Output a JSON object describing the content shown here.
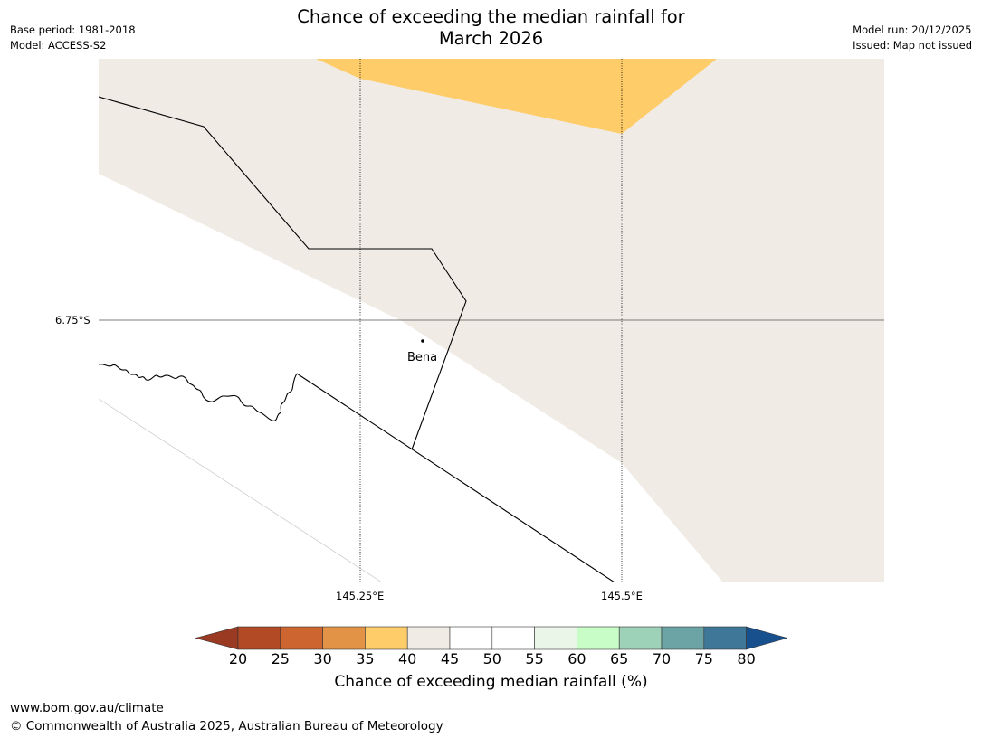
{
  "title": {
    "line1": "Chance of exceeding the median rainfall for",
    "line2": "March 2026"
  },
  "meta": {
    "base_period": "Base period: 1981-2018",
    "model": "Model: ACCESS-S2",
    "model_run": "Model run: 20/12/2025",
    "issued": "Issued: Map not issued"
  },
  "map": {
    "lat_label": "6.75°S",
    "lon_labels": [
      "145.25°E",
      "145.5°E"
    ],
    "city": "Bena",
    "colors": {
      "band_35_40": "#fecc68",
      "band_40_45": "#f0ebe5",
      "band_45_55": "#ffffff",
      "border": "#000000"
    }
  },
  "colorbar": {
    "ticks": [
      "20",
      "25",
      "30",
      "35",
      "40",
      "45",
      "50",
      "55",
      "60",
      "65",
      "70",
      "75",
      "80"
    ],
    "under_color": "#9a3a23",
    "over_color": "#17508d",
    "bins": [
      {
        "range": "20-25",
        "color": "#b14a25"
      },
      {
        "range": "25-30",
        "color": "#cd6530"
      },
      {
        "range": "30-35",
        "color": "#e29345"
      },
      {
        "range": "35-40",
        "color": "#fecc68"
      },
      {
        "range": "40-45",
        "color": "#f0ebe5"
      },
      {
        "range": "45-50",
        "color": "#ffffff"
      },
      {
        "range": "50-55",
        "color": "#ffffff"
      },
      {
        "range": "55-60",
        "color": "#eaf6e8"
      },
      {
        "range": "60-65",
        "color": "#c9fdc8"
      },
      {
        "range": "65-70",
        "color": "#9dd1b8"
      },
      {
        "range": "70-75",
        "color": "#6ca4a6"
      },
      {
        "range": "75-80",
        "color": "#3f7798"
      }
    ],
    "label": "Chance of exceeding median rainfall (%)"
  },
  "footer": {
    "url": "www.bom.gov.au/climate",
    "copyright": "© Commonwealth of Australia 2025, Australian Bureau of Meteorology"
  }
}
